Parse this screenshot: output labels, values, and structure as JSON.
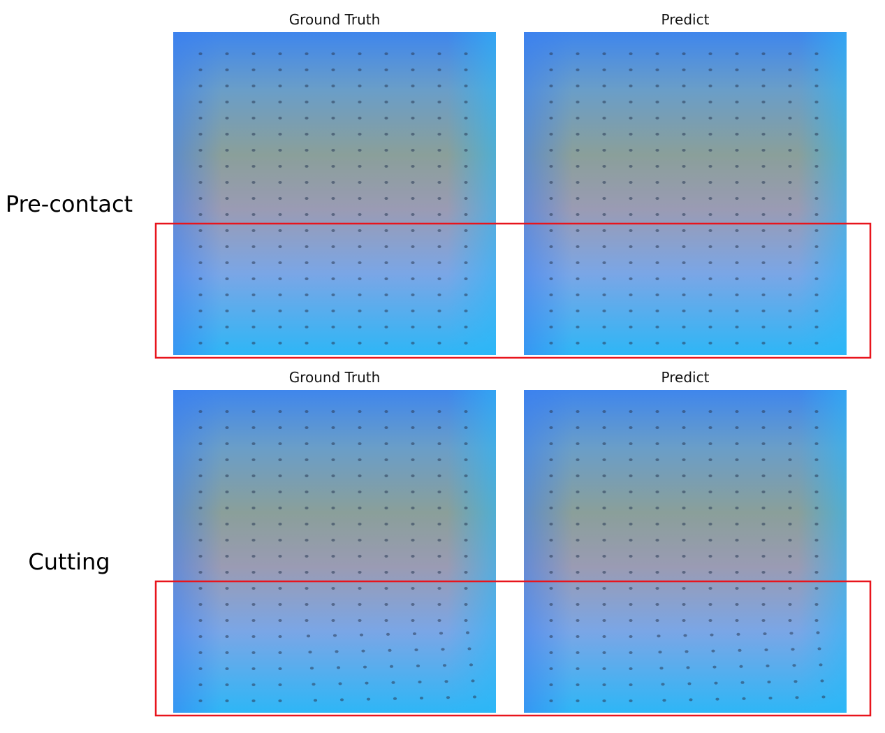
{
  "rows": [
    {
      "label": "Pre-contact",
      "panels": [
        {
          "title": "Ground Truth"
        },
        {
          "title": "Predict"
        }
      ]
    },
    {
      "label": "Cutting",
      "panels": [
        {
          "title": "Ground Truth"
        },
        {
          "title": "Predict"
        }
      ]
    }
  ]
}
